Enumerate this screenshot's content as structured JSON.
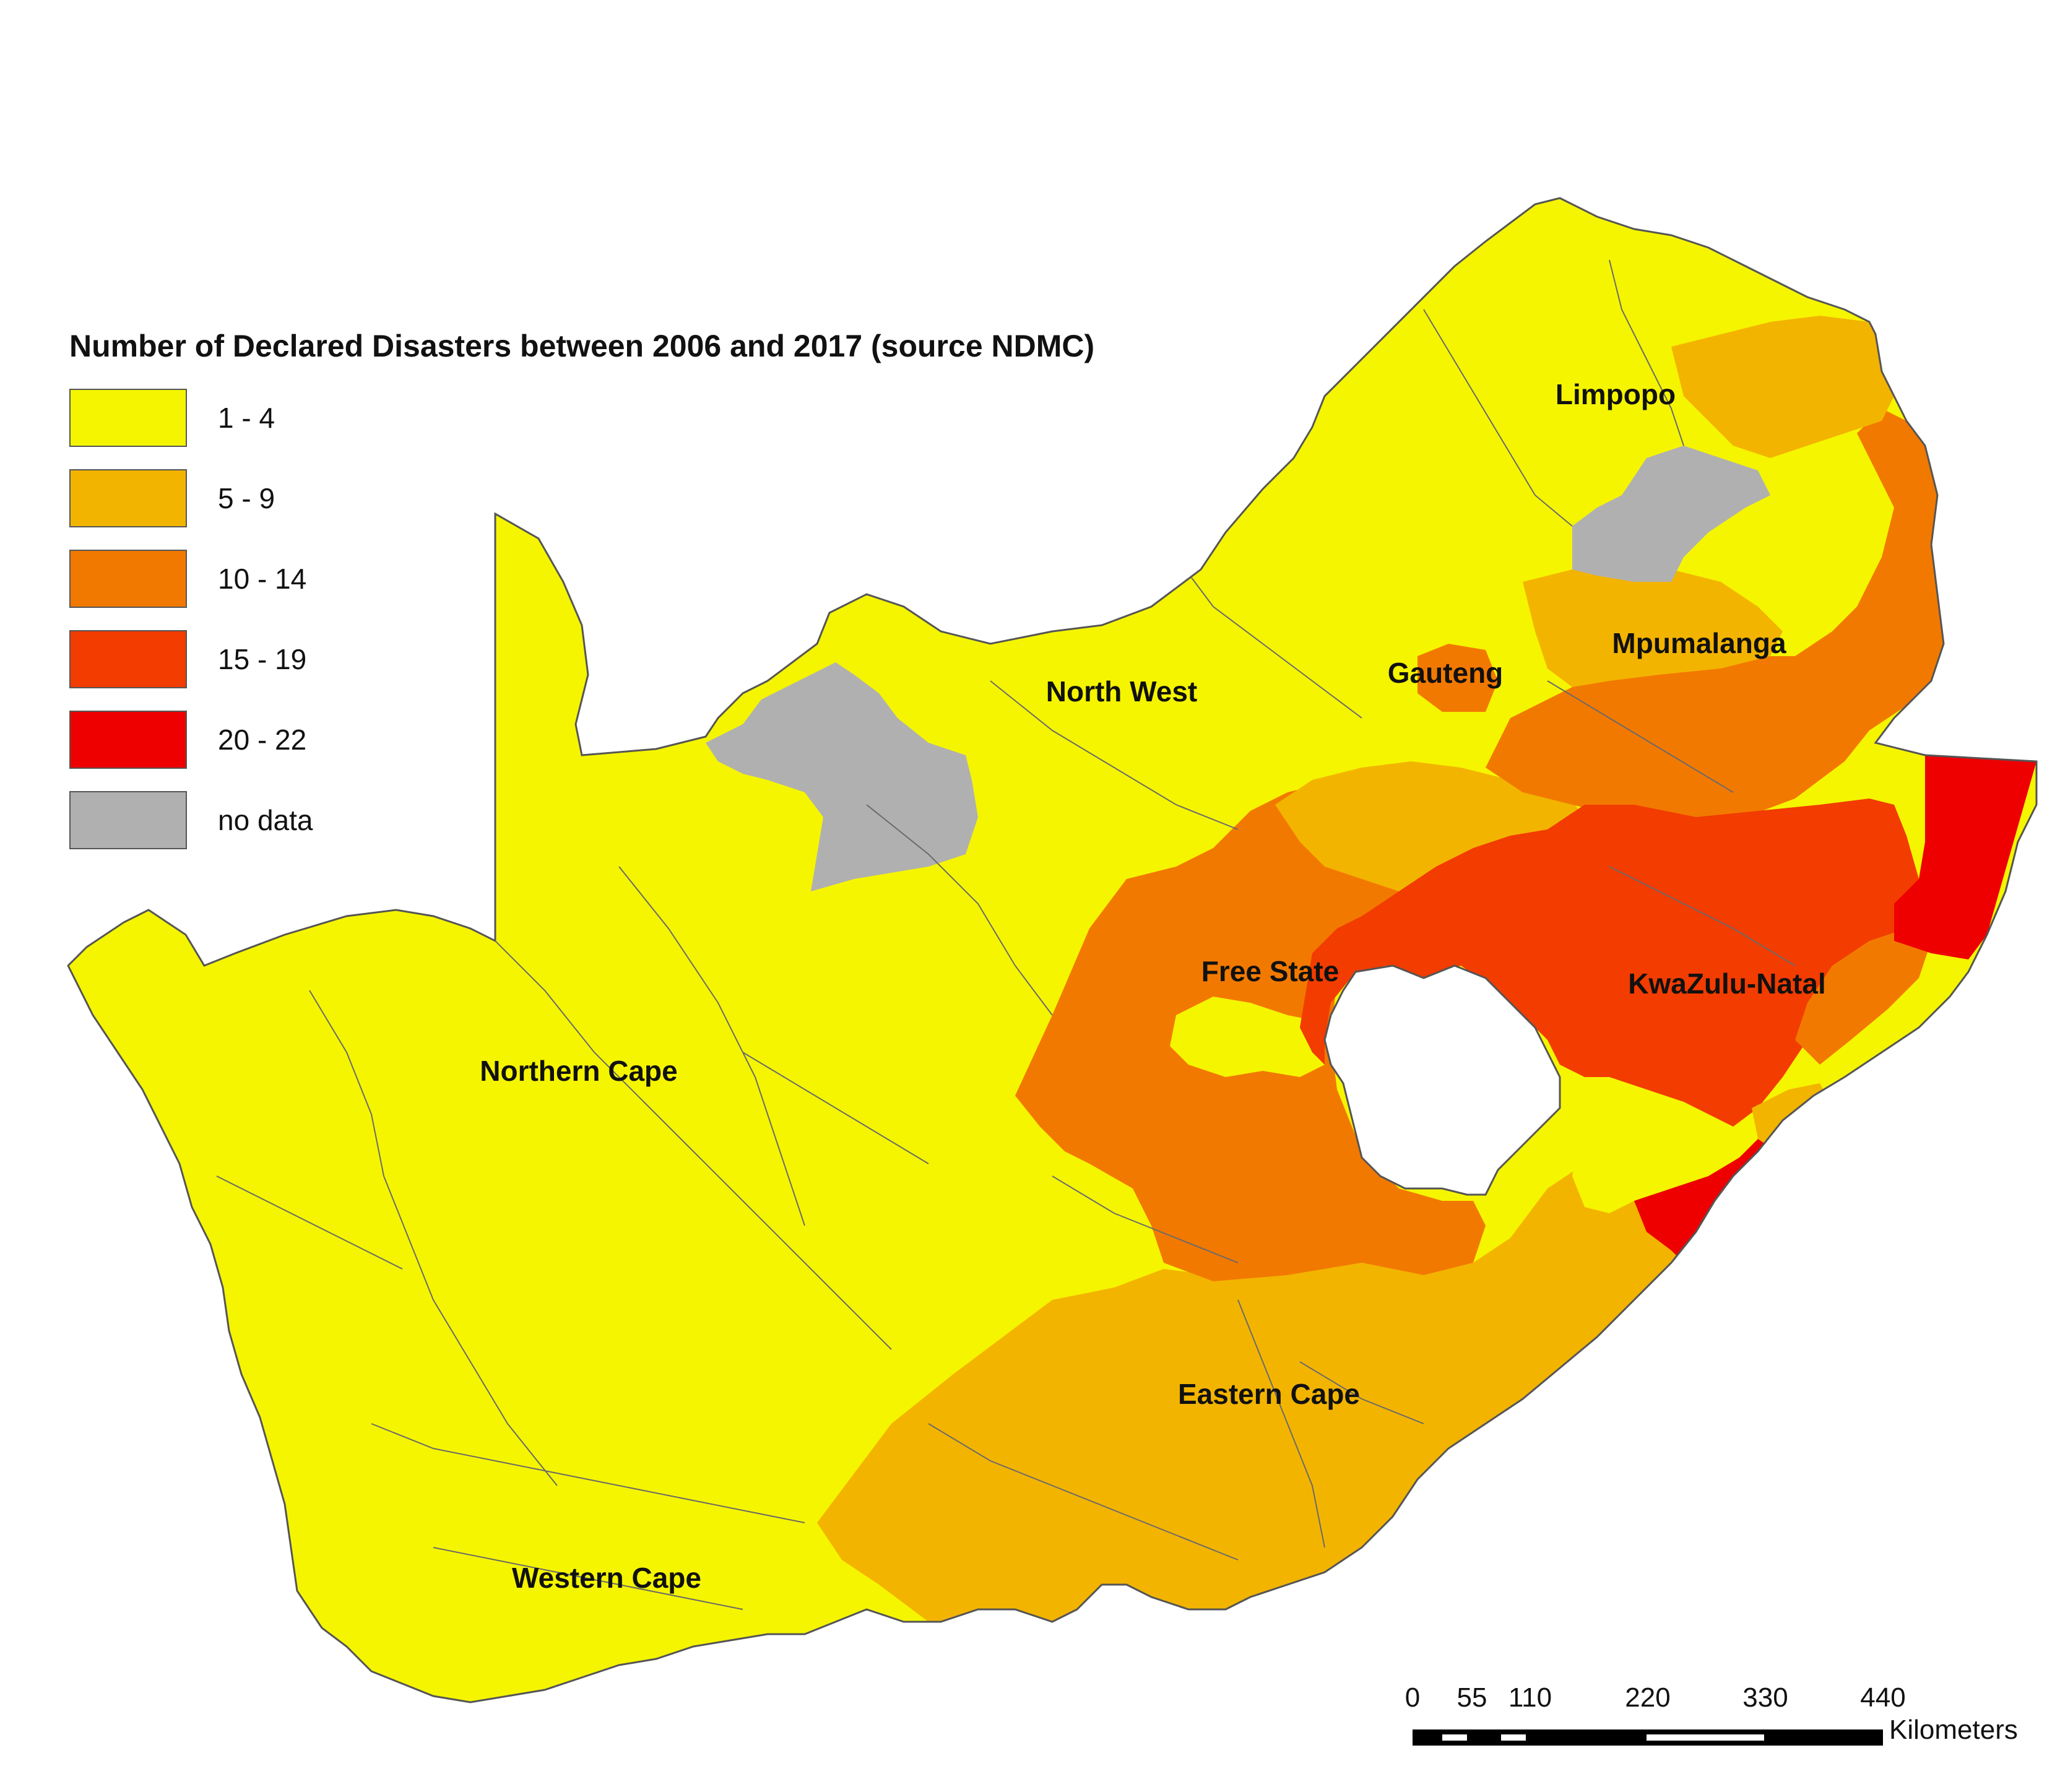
{
  "legend": {
    "title": "Number of Declared Disasters between 2006 and 2017 (source NDMC)",
    "classes": [
      {
        "label": "1 - 4",
        "color": "#f5f500"
      },
      {
        "label": "5 - 9",
        "color": "#f3b400"
      },
      {
        "label": "10 - 14",
        "color": "#f27900"
      },
      {
        "label": "15 - 19",
        "color": "#f23c00"
      },
      {
        "label": "20 - 22",
        "color": "#ee0000"
      },
      {
        "label": "no data",
        "color": "#b0b0b0"
      }
    ]
  },
  "regions": [
    {
      "name": "Limpopo"
    },
    {
      "name": "Mpumalanga"
    },
    {
      "name": "Gauteng"
    },
    {
      "name": "North West"
    },
    {
      "name": "Free State"
    },
    {
      "name": "KwaZulu-Natal"
    },
    {
      "name": "Northern Cape"
    },
    {
      "name": "Eastern Cape"
    },
    {
      "name": "Western Cape"
    }
  ],
  "scale_bar": {
    "ticks": [
      "0",
      "55",
      "110",
      "220",
      "330",
      "440"
    ],
    "unit": "Kilometers"
  }
}
